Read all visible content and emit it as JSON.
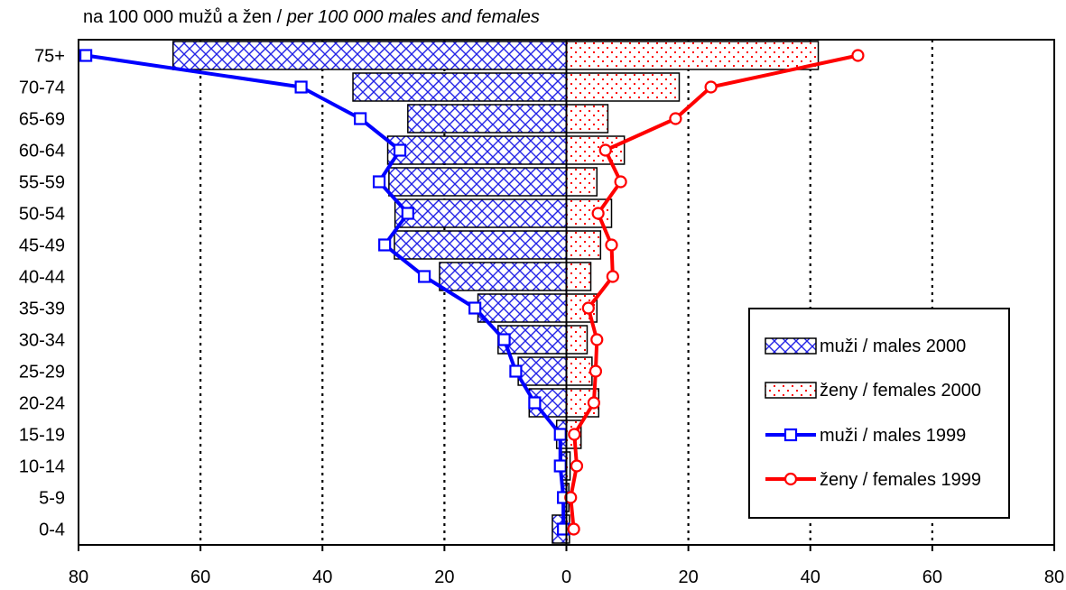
{
  "title": {
    "main": "na 100 000 mužů a žen /",
    "italic": "per 100 000 males and females"
  },
  "chart_data": {
    "type": "bar",
    "orientation": "horizontal-population-pyramid",
    "categories": [
      "0-4",
      "5-9",
      "10-14",
      "15-19",
      "20-24",
      "25-29",
      "30-34",
      "35-39",
      "40-44",
      "45-49",
      "50-54",
      "55-59",
      "60-64",
      "65-69",
      "70-74",
      "75+"
    ],
    "xlim": [
      -80,
      80
    ],
    "x_ticks": [
      -80,
      -60,
      -40,
      -20,
      0,
      20,
      40,
      60,
      80
    ],
    "x_tick_labels": [
      "80",
      "60",
      "40",
      "20",
      "0",
      "20",
      "40",
      "60",
      "80"
    ],
    "grid": "vertical dotted",
    "legend_position": "right",
    "series": [
      {
        "name": "muži / males 2000",
        "kind": "bar",
        "side": "left",
        "color": "#2323e6",
        "pattern": "crosshatch",
        "values": [
          2.3,
          0.6,
          0.8,
          1.6,
          6.1,
          7.9,
          11.2,
          14.5,
          20.8,
          28.2,
          28.1,
          29.1,
          29.3,
          26.0,
          35.0,
          64.5
        ]
      },
      {
        "name": "ženy / females 2000",
        "kind": "bar",
        "side": "right",
        "color": "#ff0000",
        "pattern": "dots",
        "values": [
          0.5,
          0.4,
          0.6,
          2.4,
          5.3,
          4.2,
          3.4,
          5.0,
          4.0,
          5.6,
          7.4,
          5.0,
          9.5,
          6.8,
          18.5,
          41.3
        ]
      },
      {
        "name": "muži / males 1999",
        "kind": "line",
        "side": "left",
        "color": "#0000ff",
        "marker": "square",
        "values": [
          0.5,
          0.5,
          1.0,
          1.0,
          5.2,
          8.3,
          10.2,
          15.0,
          23.3,
          29.8,
          26.0,
          30.7,
          27.3,
          33.8,
          43.5,
          78.8
        ]
      },
      {
        "name": "ženy / females 1999",
        "kind": "line",
        "side": "right",
        "color": "#ff0000",
        "marker": "circle",
        "values": [
          1.2,
          0.7,
          1.7,
          1.3,
          4.5,
          4.8,
          5.0,
          3.6,
          7.6,
          7.4,
          5.2,
          8.9,
          6.4,
          17.9,
          23.7,
          47.8
        ]
      }
    ]
  }
}
